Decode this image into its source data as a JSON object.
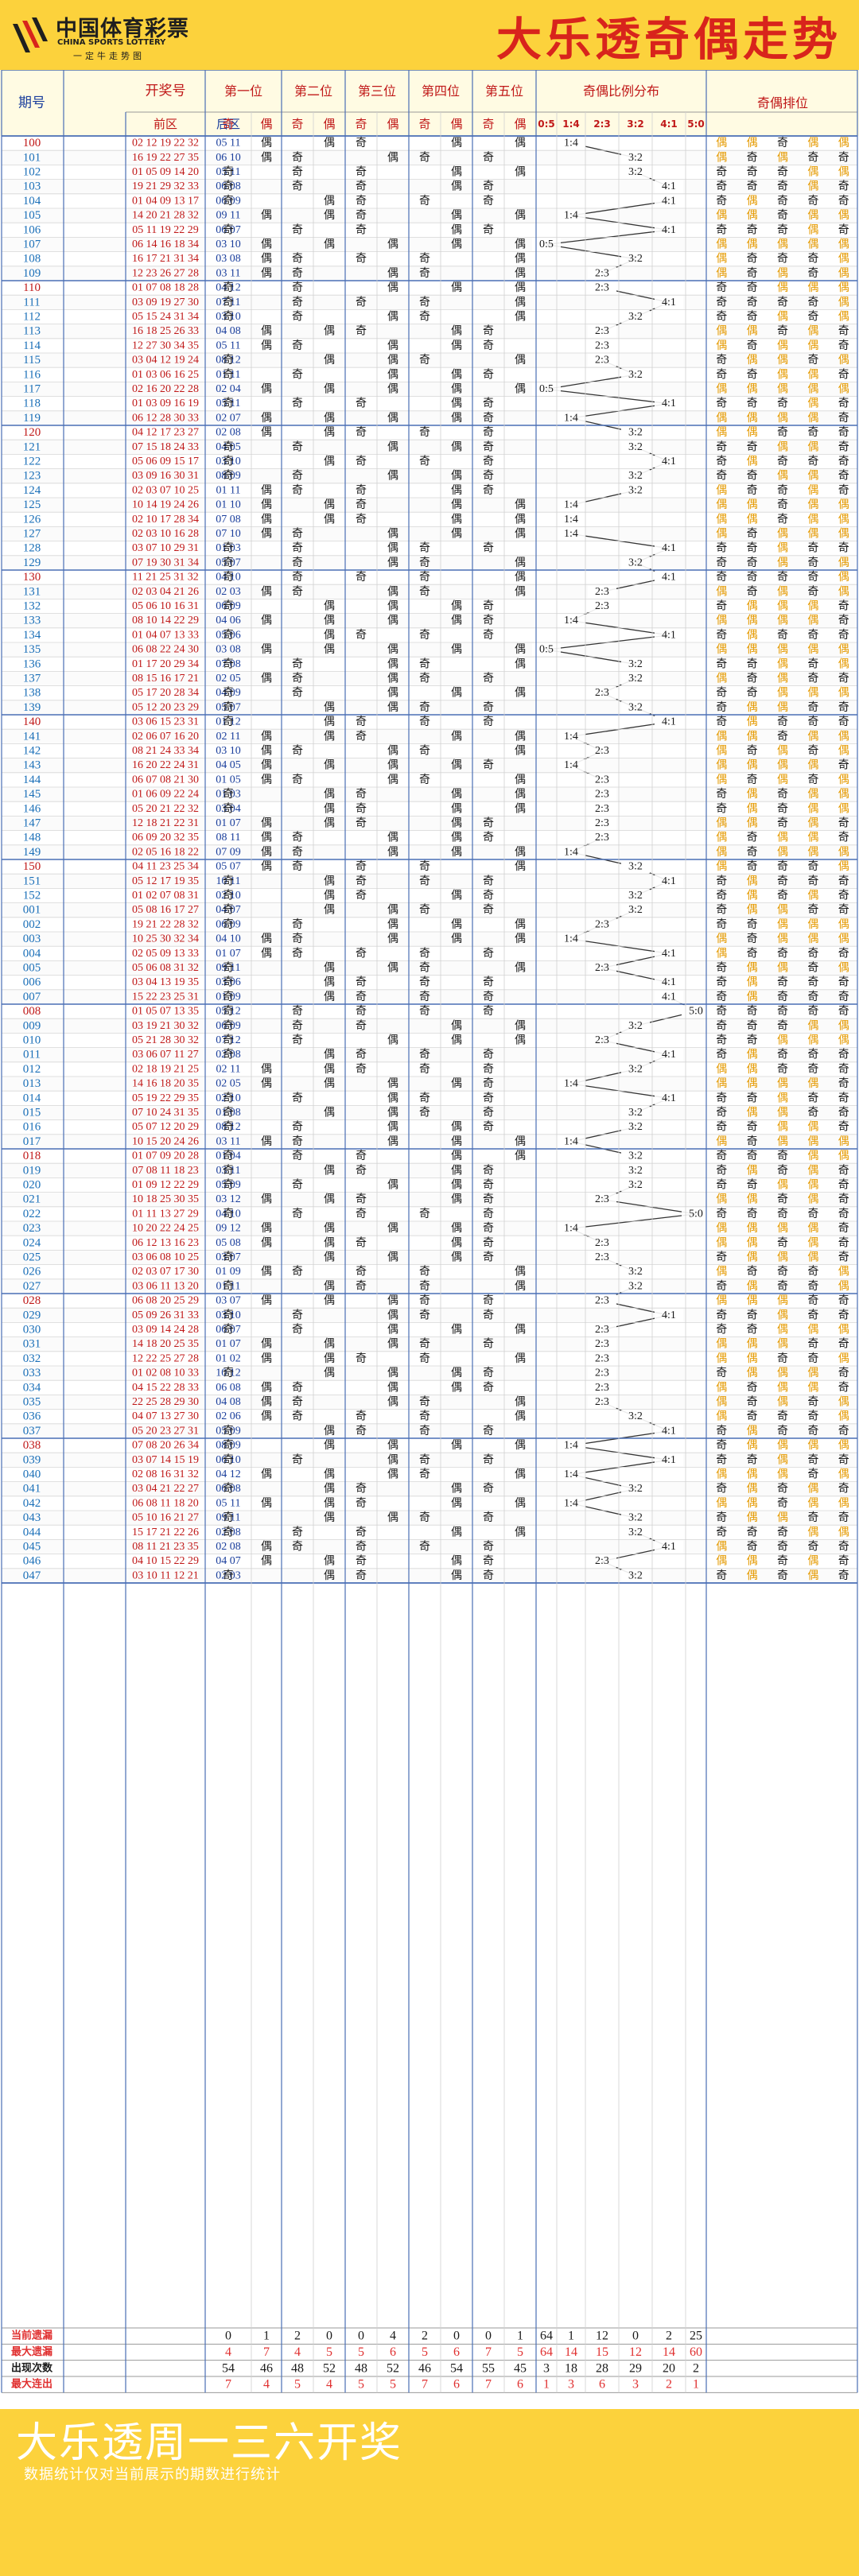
{
  "header": {
    "title": "大乐透奇偶走势",
    "logo_cn": "中国体育彩票",
    "logo_en": "CHINA SPORTS LOTTERY",
    "logo_slogan": "一定牛走势图"
  },
  "footer": {
    "title": "大乐透周一三六开奖",
    "note": "数据统计仅对当前展示的期数进行统计"
  },
  "table_headers": {
    "issue": "期号",
    "numbers": "开奖号",
    "front": "前区",
    "back": "后区",
    "positions": [
      "第一位",
      "第二位",
      "第三位",
      "第四位",
      "第五位"
    ],
    "ratio": "奇偶比例分布",
    "order": "奇偶排位",
    "odd": "奇",
    "even": "偶"
  },
  "stats_labels": [
    "当前遗漏",
    "最大遗漏",
    "出现次数",
    "最大连出"
  ],
  "colors": {
    "header_bg": "#fcd23c",
    "title": "#d8241c",
    "odd_text": "#1a1a1a",
    "even_text": "#e59a00",
    "stat_red": "#e03030"
  },
  "chart_data": {
    "type": "table",
    "ratio_labels": [
      "0:5",
      "1:4",
      "2:3",
      "3:2",
      "4:1",
      "5:0"
    ],
    "draws": [
      {
        "issue": "100",
        "front": "02 12 19 22 32",
        "back": "05 11",
        "pattern": "偶偶奇偶偶",
        "ratio": "1:4"
      },
      {
        "issue": "101",
        "front": "16 19 22 27 35",
        "back": "06 10",
        "pattern": "偶奇偶奇奇",
        "ratio": "3:2"
      },
      {
        "issue": "102",
        "front": "01 05 09 14 20",
        "back": "05 11",
        "pattern": "奇奇奇偶偶",
        "ratio": "3:2"
      },
      {
        "issue": "103",
        "front": "19 21 29 32 33",
        "back": "06 08",
        "pattern": "奇奇奇偶奇",
        "ratio": "4:1"
      },
      {
        "issue": "104",
        "front": "01 04 09 13 17",
        "back": "06 09",
        "pattern": "奇偶奇奇奇",
        "ratio": "4:1"
      },
      {
        "issue": "105",
        "front": "14 20 21 28 32",
        "back": "09 11",
        "pattern": "偶偶奇偶偶",
        "ratio": "1:4"
      },
      {
        "issue": "106",
        "front": "05 11 19 22 29",
        "back": "06 07",
        "pattern": "奇奇奇偶奇",
        "ratio": "4:1"
      },
      {
        "issue": "107",
        "front": "06 14 16 18 34",
        "back": "03 10",
        "pattern": "偶偶偶偶偶",
        "ratio": "0:5"
      },
      {
        "issue": "108",
        "front": "16 17 21 31 34",
        "back": "03 08",
        "pattern": "偶奇奇奇偶",
        "ratio": "3:2"
      },
      {
        "issue": "109",
        "front": "12 23 26 27 28",
        "back": "03 11",
        "pattern": "偶奇偶奇偶",
        "ratio": "2:3"
      },
      {
        "issue": "110",
        "front": "01 07 08 18 28",
        "back": "04 12",
        "pattern": "奇奇偶偶偶",
        "ratio": "2:3"
      },
      {
        "issue": "111",
        "front": "03 09 19 27 30",
        "back": "07 11",
        "pattern": "奇奇奇奇偶",
        "ratio": "4:1"
      },
      {
        "issue": "112",
        "front": "05 15 24 31 34",
        "back": "03 10",
        "pattern": "奇奇偶奇偶",
        "ratio": "3:2"
      },
      {
        "issue": "113",
        "front": "16 18 25 26 33",
        "back": "04 08",
        "pattern": "偶偶奇偶奇",
        "ratio": "2:3"
      },
      {
        "issue": "114",
        "front": "12 27 30 34 35",
        "back": "05 11",
        "pattern": "偶奇偶偶奇",
        "ratio": "2:3"
      },
      {
        "issue": "115",
        "front": "03 04 12 19 24",
        "back": "08 12",
        "pattern": "奇偶偶奇偶",
        "ratio": "2:3"
      },
      {
        "issue": "116",
        "front": "01 03 06 16 25",
        "back": "01 11",
        "pattern": "奇奇偶偶奇",
        "ratio": "3:2"
      },
      {
        "issue": "117",
        "front": "02 16 20 22 28",
        "back": "02 04",
        "pattern": "偶偶偶偶偶",
        "ratio": "0:5"
      },
      {
        "issue": "118",
        "front": "01 03 09 16 19",
        "back": "05 11",
        "pattern": "奇奇奇偶奇",
        "ratio": "4:1"
      },
      {
        "issue": "119",
        "front": "06 12 28 30 33",
        "back": "02 07",
        "pattern": "偶偶偶偶奇",
        "ratio": "1:4"
      },
      {
        "issue": "120",
        "front": "04 12 17 23 27",
        "back": "02 08",
        "pattern": "偶偶奇奇奇",
        "ratio": "3:2"
      },
      {
        "issue": "121",
        "front": "07 15 18 24 33",
        "back": "04 05",
        "pattern": "奇奇偶偶奇",
        "ratio": "3:2"
      },
      {
        "issue": "122",
        "front": "05 06 09 15 17",
        "back": "03 10",
        "pattern": "奇偶奇奇奇",
        "ratio": "4:1"
      },
      {
        "issue": "123",
        "front": "03 09 16 30 31",
        "back": "08 09",
        "pattern": "奇奇偶偶奇",
        "ratio": "3:2"
      },
      {
        "issue": "124",
        "front": "02 03 07 10 25",
        "back": "01 11",
        "pattern": "偶奇奇偶奇",
        "ratio": "3:2"
      },
      {
        "issue": "125",
        "front": "10 14 19 24 26",
        "back": "01 10",
        "pattern": "偶偶奇偶偶",
        "ratio": "1:4"
      },
      {
        "issue": "126",
        "front": "02 10 17 28 34",
        "back": "07 08",
        "pattern": "偶偶奇偶偶",
        "ratio": "1:4"
      },
      {
        "issue": "127",
        "front": "02 03 10 16 28",
        "back": "07 10",
        "pattern": "偶奇偶偶偶",
        "ratio": "1:4"
      },
      {
        "issue": "128",
        "front": "03 07 10 29 31",
        "back": "01 03",
        "pattern": "奇奇偶奇奇",
        "ratio": "4:1"
      },
      {
        "issue": "129",
        "front": "07 19 30 31 34",
        "back": "05 07",
        "pattern": "奇奇偶奇偶",
        "ratio": "3:2"
      },
      {
        "issue": "130",
        "front": "11 21 25 31 32",
        "back": "04 10",
        "pattern": "奇奇奇奇偶",
        "ratio": "4:1"
      },
      {
        "issue": "131",
        "front": "02 03 04 21 26",
        "back": "02 03",
        "pattern": "偶奇偶奇偶",
        "ratio": "2:3"
      },
      {
        "issue": "132",
        "front": "05 06 10 16 31",
        "back": "06 09",
        "pattern": "奇偶偶偶奇",
        "ratio": "2:3"
      },
      {
        "issue": "133",
        "front": "08 10 14 22 29",
        "back": "04 06",
        "pattern": "偶偶偶偶奇",
        "ratio": "1:4"
      },
      {
        "issue": "134",
        "front": "01 04 07 13 33",
        "back": "05 06",
        "pattern": "奇偶奇奇奇",
        "ratio": "4:1"
      },
      {
        "issue": "135",
        "front": "06 08 22 24 30",
        "back": "03 08",
        "pattern": "偶偶偶偶偶",
        "ratio": "0:5"
      },
      {
        "issue": "136",
        "front": "01 17 20 29 34",
        "back": "07 08",
        "pattern": "奇奇偶奇偶",
        "ratio": "3:2"
      },
      {
        "issue": "137",
        "front": "08 15 16 17 21",
        "back": "02 05",
        "pattern": "偶奇偶奇奇",
        "ratio": "3:2"
      },
      {
        "issue": "138",
        "front": "05 17 20 28 34",
        "back": "04 09",
        "pattern": "奇奇偶偶偶",
        "ratio": "2:3"
      },
      {
        "issue": "139",
        "front": "05 12 20 23 29",
        "back": "05 07",
        "pattern": "奇偶偶奇奇",
        "ratio": "3:2"
      },
      {
        "issue": "140",
        "front": "03 06 15 23 31",
        "back": "01 12",
        "pattern": "奇偶奇奇奇",
        "ratio": "4:1"
      },
      {
        "issue": "141",
        "front": "02 06 07 16 20",
        "back": "02 11",
        "pattern": "偶偶奇偶偶",
        "ratio": "1:4"
      },
      {
        "issue": "142",
        "front": "08 21 24 33 34",
        "back": "03 10",
        "pattern": "偶奇偶奇偶",
        "ratio": "2:3"
      },
      {
        "issue": "143",
        "front": "16 20 22 24 31",
        "back": "04 05",
        "pattern": "偶偶偶偶奇",
        "ratio": "1:4"
      },
      {
        "issue": "144",
        "front": "06 07 08 21 30",
        "back": "01 05",
        "pattern": "偶奇偶奇偶",
        "ratio": "2:3"
      },
      {
        "issue": "145",
        "front": "01 06 09 22 24",
        "back": "01 03",
        "pattern": "奇偶奇偶偶",
        "ratio": "2:3"
      },
      {
        "issue": "146",
        "front": "05 20 21 22 32",
        "back": "03 04",
        "pattern": "奇偶奇偶偶",
        "ratio": "2:3"
      },
      {
        "issue": "147",
        "front": "12 18 21 22 31",
        "back": "01 07",
        "pattern": "偶偶奇偶奇",
        "ratio": "2:3"
      },
      {
        "issue": "148",
        "front": "06 09 20 32 35",
        "back": "08 11",
        "pattern": "偶奇偶偶奇",
        "ratio": "2:3"
      },
      {
        "issue": "149",
        "front": "02 05 16 18 22",
        "back": "07 09",
        "pattern": "偶奇偶偶偶",
        "ratio": "1:4"
      },
      {
        "issue": "150",
        "front": "04 11 23 25 34",
        "back": "05 07",
        "pattern": "偶奇奇奇偶",
        "ratio": "3:2"
      },
      {
        "issue": "151",
        "front": "05 12 17 19 35",
        "back": "10 11",
        "pattern": "奇偶奇奇奇",
        "ratio": "4:1"
      },
      {
        "issue": "152",
        "front": "01 02 07 08 31",
        "back": "02 10",
        "pattern": "奇偶奇偶奇",
        "ratio": "3:2"
      },
      {
        "issue": "001",
        "front": "05 08 16 17 27",
        "back": "04 07",
        "pattern": "奇偶偶奇奇",
        "ratio": "3:2"
      },
      {
        "issue": "002",
        "front": "19 21 22 28 32",
        "back": "06 09",
        "pattern": "奇奇偶偶偶",
        "ratio": "2:3"
      },
      {
        "issue": "003",
        "front": "10 25 30 32 34",
        "back": "04 10",
        "pattern": "偶奇偶偶偶",
        "ratio": "1:4"
      },
      {
        "issue": "004",
        "front": "02 05 09 13 33",
        "back": "01 07",
        "pattern": "偶奇奇奇奇",
        "ratio": "4:1"
      },
      {
        "issue": "005",
        "front": "05 06 08 31 32",
        "back": "09 11",
        "pattern": "奇偶偶奇偶",
        "ratio": "2:3"
      },
      {
        "issue": "006",
        "front": "03 04 13 19 35",
        "back": "03 06",
        "pattern": "奇偶奇奇奇",
        "ratio": "4:1"
      },
      {
        "issue": "007",
        "front": "15 22 23 25 31",
        "back": "01 09",
        "pattern": "奇偶奇奇奇",
        "ratio": "4:1"
      },
      {
        "issue": "008",
        "front": "01 05 07 13 35",
        "back": "05 12",
        "pattern": "奇奇奇奇奇",
        "ratio": "5:0"
      },
      {
        "issue": "009",
        "front": "03 19 21 30 32",
        "back": "06 09",
        "pattern": "奇奇奇偶偶",
        "ratio": "3:2"
      },
      {
        "issue": "010",
        "front": "05 21 28 30 32",
        "back": "07 12",
        "pattern": "奇奇偶偶偶",
        "ratio": "2:3"
      },
      {
        "issue": "011",
        "front": "03 06 07 11 27",
        "back": "02 08",
        "pattern": "奇偶奇奇奇",
        "ratio": "4:1"
      },
      {
        "issue": "012",
        "front": "02 18 19 21 25",
        "back": "02 11",
        "pattern": "偶偶奇奇奇",
        "ratio": "3:2"
      },
      {
        "issue": "013",
        "front": "14 16 18 20 35",
        "back": "02 05",
        "pattern": "偶偶偶偶奇",
        "ratio": "1:4"
      },
      {
        "issue": "014",
        "front": "05 19 22 29 35",
        "back": "02 10",
        "pattern": "奇奇偶奇奇",
        "ratio": "4:1"
      },
      {
        "issue": "015",
        "front": "07 10 24 31 35",
        "back": "01 08",
        "pattern": "奇偶偶奇奇",
        "ratio": "3:2"
      },
      {
        "issue": "016",
        "front": "05 07 12 20 29",
        "back": "08 12",
        "pattern": "奇奇偶偶奇",
        "ratio": "3:2"
      },
      {
        "issue": "017",
        "front": "10 15 20 24 26",
        "back": "03 11",
        "pattern": "偶奇偶偶偶",
        "ratio": "1:4"
      },
      {
        "issue": "018",
        "front": "01 07 09 20 28",
        "back": "01 04",
        "pattern": "奇奇奇偶偶",
        "ratio": "3:2"
      },
      {
        "issue": "019",
        "front": "07 08 11 18 23",
        "back": "03 11",
        "pattern": "奇偶奇偶奇",
        "ratio": "3:2"
      },
      {
        "issue": "020",
        "front": "01 09 12 22 29",
        "back": "05 09",
        "pattern": "奇奇偶偶奇",
        "ratio": "3:2"
      },
      {
        "issue": "021",
        "front": "10 18 25 30 35",
        "back": "03 12",
        "pattern": "偶偶奇偶奇",
        "ratio": "2:3"
      },
      {
        "issue": "022",
        "front": "01 11 13 27 29",
        "back": "04 10",
        "pattern": "奇奇奇奇奇",
        "ratio": "5:0"
      },
      {
        "issue": "023",
        "front": "10 20 22 24 25",
        "back": "09 12",
        "pattern": "偶偶偶偶奇",
        "ratio": "1:4"
      },
      {
        "issue": "024",
        "front": "06 12 13 16 23",
        "back": "05 08",
        "pattern": "偶偶奇偶奇",
        "ratio": "2:3"
      },
      {
        "issue": "025",
        "front": "03 06 08 10 25",
        "back": "03 07",
        "pattern": "奇偶偶偶奇",
        "ratio": "2:3"
      },
      {
        "issue": "026",
        "front": "02 03 07 17 30",
        "back": "01 09",
        "pattern": "偶奇奇奇偶",
        "ratio": "3:2"
      },
      {
        "issue": "027",
        "front": "03 06 11 13 20",
        "back": "01 11",
        "pattern": "奇偶奇奇偶",
        "ratio": "3:2"
      },
      {
        "issue": "028",
        "front": "06 08 20 25 29",
        "back": "03 07",
        "pattern": "偶偶偶奇奇",
        "ratio": "2:3"
      },
      {
        "issue": "029",
        "front": "05 09 26 31 33",
        "back": "03 10",
        "pattern": "奇奇偶奇奇",
        "ratio": "4:1"
      },
      {
        "issue": "030",
        "front": "03 09 14 24 28",
        "back": "06 07",
        "pattern": "奇奇偶偶偶",
        "ratio": "2:3"
      },
      {
        "issue": "031",
        "front": "14 18 20 25 35",
        "back": "01 07",
        "pattern": "偶偶偶奇奇",
        "ratio": "2:3"
      },
      {
        "issue": "032",
        "front": "12 22 25 27 28",
        "back": "01 02",
        "pattern": "偶偶奇奇偶",
        "ratio": "2:3"
      },
      {
        "issue": "033",
        "front": "01 02 08 10 33",
        "back": "10 12",
        "pattern": "奇偶偶偶奇",
        "ratio": "2:3"
      },
      {
        "issue": "034",
        "front": "04 15 22 28 33",
        "back": "06 08",
        "pattern": "偶奇偶偶奇",
        "ratio": "2:3"
      },
      {
        "issue": "035",
        "front": "22 25 28 29 30",
        "back": "04 08",
        "pattern": "偶奇偶奇偶",
        "ratio": "2:3"
      },
      {
        "issue": "036",
        "front": "04 07 13 27 30",
        "back": "02 06",
        "pattern": "偶奇奇奇偶",
        "ratio": "3:2"
      },
      {
        "issue": "037",
        "front": "05 20 23 27 31",
        "back": "05 09",
        "pattern": "奇偶奇奇奇",
        "ratio": "4:1"
      },
      {
        "issue": "038",
        "front": "07 08 20 26 34",
        "back": "08 09",
        "pattern": "奇偶偶偶偶",
        "ratio": "1:4"
      },
      {
        "issue": "039",
        "front": "03 07 14 15 19",
        "back": "06 10",
        "pattern": "奇奇偶奇奇",
        "ratio": "4:1"
      },
      {
        "issue": "040",
        "front": "02 08 16 31 32",
        "back": "04 12",
        "pattern": "偶偶偶奇偶",
        "ratio": "1:4"
      },
      {
        "issue": "041",
        "front": "03 04 21 22 27",
        "back": "06 08",
        "pattern": "奇偶奇偶奇",
        "ratio": "3:2"
      },
      {
        "issue": "042",
        "front": "06 08 11 18 20",
        "back": "05 11",
        "pattern": "偶偶奇偶偶",
        "ratio": "1:4"
      },
      {
        "issue": "043",
        "front": "05 10 16 21 27",
        "back": "09 11",
        "pattern": "奇偶偶奇奇",
        "ratio": "3:2"
      },
      {
        "issue": "044",
        "front": "15 17 21 22 26",
        "back": "02 08",
        "pattern": "奇奇奇偶偶",
        "ratio": "3:2"
      },
      {
        "issue": "045",
        "front": "08 11 21 23 35",
        "back": "02 08",
        "pattern": "偶奇奇奇奇",
        "ratio": "4:1"
      },
      {
        "issue": "046",
        "front": "04 10 15 22 29",
        "back": "04 07",
        "pattern": "偶偶奇偶奇",
        "ratio": "2:3"
      },
      {
        "issue": "047",
        "front": "03 10 11 12 21",
        "back": "02 03",
        "pattern": "奇偶奇偶奇",
        "ratio": "3:2"
      }
    ],
    "stats": [
      [
        0,
        1,
        2,
        0,
        0,
        4,
        2,
        0,
        0,
        1,
        64,
        1,
        12,
        0,
        2,
        25
      ],
      [
        4,
        7,
        4,
        5,
        5,
        6,
        5,
        6,
        7,
        5,
        64,
        14,
        15,
        12,
        14,
        60
      ],
      [
        54,
        46,
        48,
        52,
        48,
        52,
        46,
        54,
        55,
        45,
        3,
        18,
        28,
        29,
        20,
        2
      ],
      [
        7,
        4,
        5,
        4,
        5,
        5,
        7,
        6,
        7,
        6,
        1,
        3,
        6,
        3,
        2,
        1
      ]
    ]
  }
}
